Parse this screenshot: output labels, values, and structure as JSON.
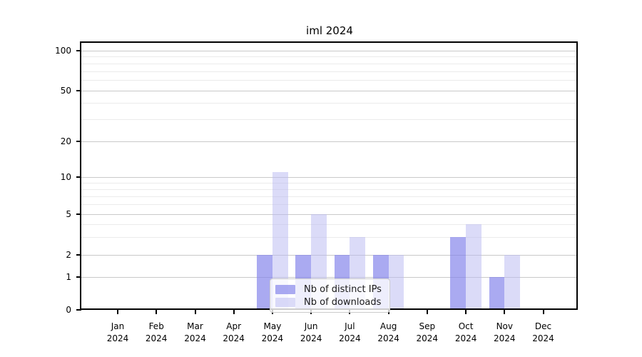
{
  "chart_data": {
    "type": "bar",
    "title": "iml 2024",
    "categories": [
      "Jan",
      "Feb",
      "Mar",
      "Apr",
      "May",
      "Jun",
      "Jul",
      "Aug",
      "Sep",
      "Oct",
      "Nov",
      "Dec"
    ],
    "category_year": "2024",
    "series": [
      {
        "name": "Nb of distinct IPs",
        "values": [
          0,
          0,
          0,
          0,
          2,
          2,
          2,
          2,
          0,
          3,
          1,
          0
        ],
        "color": "rgba(130,130,234,0.68)"
      },
      {
        "name": "Nb of downloads",
        "values": [
          0,
          0,
          0,
          0,
          11,
          5,
          3,
          2,
          0,
          4,
          2,
          0
        ],
        "color": "rgba(186,186,242,0.52)"
      }
    ],
    "xlabel": "",
    "ylabel": "",
    "yscale": "symlog",
    "yticks": [
      0,
      1,
      2,
      5,
      10,
      20,
      50,
      100
    ],
    "ytick_labels": [
      "0",
      "1",
      "2",
      "5",
      "10",
      "20",
      "50",
      "100"
    ],
    "ylim": [
      0,
      114
    ],
    "grid": true,
    "legend_position": "lower-center",
    "colors": {
      "grid_major": "#c9c9c9",
      "grid_minor": "#ebebeb",
      "axis": "#000000",
      "text": "#000000",
      "legend_border": "#cccccc",
      "legend_bg": "rgba(255,255,255,0.8)"
    }
  }
}
